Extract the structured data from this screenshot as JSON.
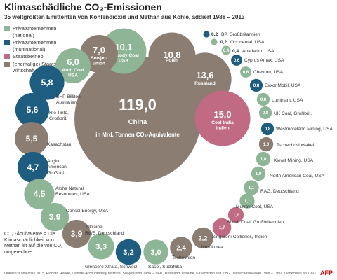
{
  "header": {
    "title": "Klimaschädliche CO₂-Emissionen",
    "subtitle": "35 weltgrößten Emittenten von Kohlendioxid und Methan aus Kohle, addiert 1988 – 2013"
  },
  "legend": [
    {
      "label": "Privatunternehmen (national)",
      "color": "#8db596"
    },
    {
      "label": "Privatunternehmen (multinational)",
      "color": "#1e5d7f"
    },
    {
      "label": "Staatsbetrieb",
      "color": "#c06a83"
    },
    {
      "label": "(ehemalige) Staats-wirtschaft",
      "color": "#8c7d72"
    }
  ],
  "chart_data": {
    "type": "bubble",
    "unit": "in Mrd. Tonnen CO₂-Äquivalente",
    "colors": {
      "national": "#8db596",
      "multinational": "#1e5d7f",
      "state": "#c06a83",
      "economy": "#8c7d72"
    },
    "entities": [
      {
        "name": "China",
        "value": 119.0,
        "label": "119,0",
        "category": "economy"
      },
      {
        "name": "Russland",
        "value": 13.6,
        "label": "13,6",
        "category": "economy"
      },
      {
        "name": "Coal India Indien",
        "value": 15.0,
        "label": "15,0",
        "category": "state"
      },
      {
        "name": "Polen",
        "value": 10.8,
        "label": "10,8",
        "category": "economy"
      },
      {
        "name": "Peabody Coal USA",
        "value": 10.1,
        "label": "10,1",
        "category": "national"
      },
      {
        "name": "Sowjet-union",
        "value": 7.0,
        "label": "7,0",
        "category": "economy"
      },
      {
        "name": "Arch Coal USA",
        "value": 6.0,
        "label": "6,0",
        "category": "national"
      },
      {
        "name": "BHP Billiton, Australien",
        "value": 5.8,
        "label": "5,8",
        "category": "multinational"
      },
      {
        "name": "Rio Tinto, Großbrit.",
        "value": 5.6,
        "label": "5,6",
        "category": "multinational"
      },
      {
        "name": "Kasachstan",
        "value": 5.5,
        "label": "5,5",
        "category": "economy"
      },
      {
        "name": "Anglo American, Großbrit.",
        "value": 4.7,
        "label": "4,7",
        "category": "multinational"
      },
      {
        "name": "Alpha Natural Resources, USA",
        "value": 4.5,
        "label": "4,5",
        "category": "national"
      },
      {
        "name": "Consol Energy, USA",
        "value": 3.9,
        "label": "3,9",
        "category": "national"
      },
      {
        "name": "Ukraine",
        "value": 3.9,
        "label": "3,9",
        "category": "economy"
      },
      {
        "name": "RWE, Deutschland",
        "value": 3.3,
        "label": "3,3",
        "category": "national"
      },
      {
        "name": "Glencore Xtrata, Schweiz",
        "value": 3.2,
        "label": "3,2",
        "category": "multinational"
      },
      {
        "name": "Sasol, Südafrika",
        "value": 3.0,
        "label": "3,0",
        "category": "national"
      },
      {
        "name": "Tschechien",
        "value": 2.4,
        "label": "2,4",
        "category": "economy"
      },
      {
        "name": "Nordkorea",
        "value": 2.2,
        "label": "2,2",
        "category": "economy"
      },
      {
        "name": "Singareni Collieries, Indien",
        "value": 1.7,
        "label": "1,7",
        "category": "state"
      },
      {
        "name": "British Coal, Großbritannien",
        "value": 1.2,
        "label": "1,2",
        "category": "state"
      },
      {
        "name": "Murray Coal, USA",
        "value": 1.1,
        "label": "1,1",
        "category": "national"
      },
      {
        "name": "RAG, Deutschland",
        "value": 1.1,
        "label": "1,1",
        "category": "national"
      },
      {
        "name": "North American Coal, USA",
        "value": 1.0,
        "label": "1,0",
        "category": "national"
      },
      {
        "name": "Kiewit Mining, USA",
        "value": 1.0,
        "label": "1,0",
        "category": "national"
      },
      {
        "name": "Tschechoslowakei",
        "value": 1.0,
        "label": "1,0",
        "category": "economy"
      },
      {
        "name": "Westmoreland Mining, USA",
        "value": 0.8,
        "label": "0,8",
        "category": "multinational"
      },
      {
        "name": "UK Coal, Großbrit.",
        "value": 0.8,
        "label": "0,8",
        "category": "national"
      },
      {
        "name": "Luminant, USA",
        "value": 0.8,
        "label": "0,8",
        "category": "national"
      },
      {
        "name": "ExxonMobil, USA",
        "value": 0.8,
        "label": "0,8",
        "category": "multinational"
      },
      {
        "name": "Chevron, USA",
        "value": 0.6,
        "label": "0,6",
        "category": "national"
      },
      {
        "name": "Cyprus Amax, USA",
        "value": 0.6,
        "label": "0,6",
        "category": "multinational"
      },
      {
        "name": "Anadarko, USA",
        "value": 0.4,
        "label": "0,4",
        "category": "national"
      },
      {
        "name": "Occidental, USA",
        "value": 0.2,
        "label": "0,2",
        "category": "national"
      },
      {
        "name": "BP, Großbritannien",
        "value": 0.2,
        "label": "0,2",
        "category": "multinational"
      }
    ]
  },
  "footnote": "CO₂ -Äquivalente = Die Klimaschädlichkeit von Methan ist auf die von CO₂ umgerechnet",
  "sources": "Quellen: Kohleatlas 2015, Richard Heede, Climate Accountability Institute, Sowjetunion 1988 – 1991, Russland, Ukraine, Kasachstan seit 1992, Tschechoslowakei 1988 – 1992, Tschechien ab 1993",
  "logo": "AFP"
}
